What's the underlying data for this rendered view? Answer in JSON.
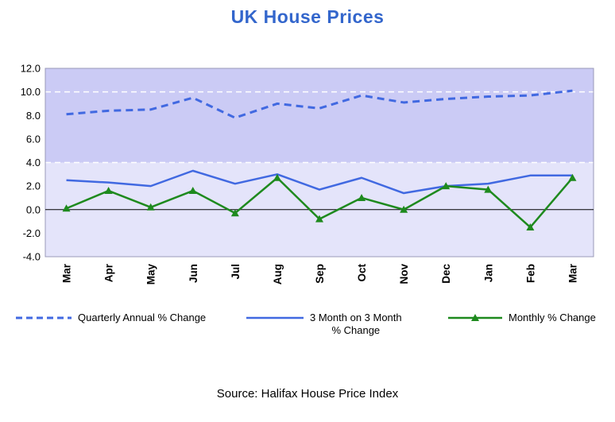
{
  "title": "UK House Prices",
  "source": "Source: Halifax House Price Index",
  "legend": {
    "items": [
      {
        "label_lines": [
          "Quarterly Annual % Change"
        ]
      },
      {
        "label_lines": [
          "3 Month on 3 Month",
          "% Change"
        ]
      },
      {
        "label_lines": [
          "Monthly % Change"
        ]
      }
    ]
  },
  "chart_data": {
    "type": "line",
    "title": "UK House Prices",
    "categories": [
      "Mar",
      "Apr",
      "May",
      "Jun",
      "Jul",
      "Aug",
      "Sep",
      "Oct",
      "Nov",
      "Dec",
      "Jan",
      "Feb",
      "Mar"
    ],
    "series": [
      {
        "name": "Quarterly Annual % Change",
        "color": "#4169E1",
        "dash": true,
        "values": [
          8.1,
          8.4,
          8.5,
          9.5,
          7.8,
          9.0,
          8.6,
          9.7,
          9.1,
          9.4,
          9.6,
          9.7,
          10.1
        ]
      },
      {
        "name": "3 Month on 3 Month % Change",
        "color": "#4169E1",
        "dash": false,
        "values": [
          2.5,
          2.3,
          2.0,
          3.3,
          2.2,
          3.0,
          1.7,
          2.7,
          1.4,
          2.0,
          2.2,
          2.9,
          2.9
        ]
      },
      {
        "name": "Monthly % Change",
        "color": "#1E8A1E",
        "dash": false,
        "marker": "triangle",
        "values": [
          0.1,
          1.6,
          0.2,
          1.6,
          -0.3,
          2.7,
          -0.8,
          1.0,
          0.0,
          2.0,
          1.7,
          -1.5,
          2.7
        ]
      }
    ],
    "ylim": [
      -4,
      12
    ],
    "yticks": [
      12,
      10,
      8,
      6,
      4,
      2,
      0,
      -2,
      -4
    ],
    "ytick_labels": [
      "12.0",
      "10.0",
      "8.0",
      "6.0",
      "4.0",
      "2.0",
      "0.0",
      "-2.0",
      "-4.0"
    ],
    "gridlines": [
      10,
      4
    ],
    "band_split": 4,
    "band_upper_color": "#CBCBF5",
    "band_lower_color": "#E4E4FA",
    "zero_line_color": "#000000",
    "legend_position": "bottom",
    "grid": true
  }
}
